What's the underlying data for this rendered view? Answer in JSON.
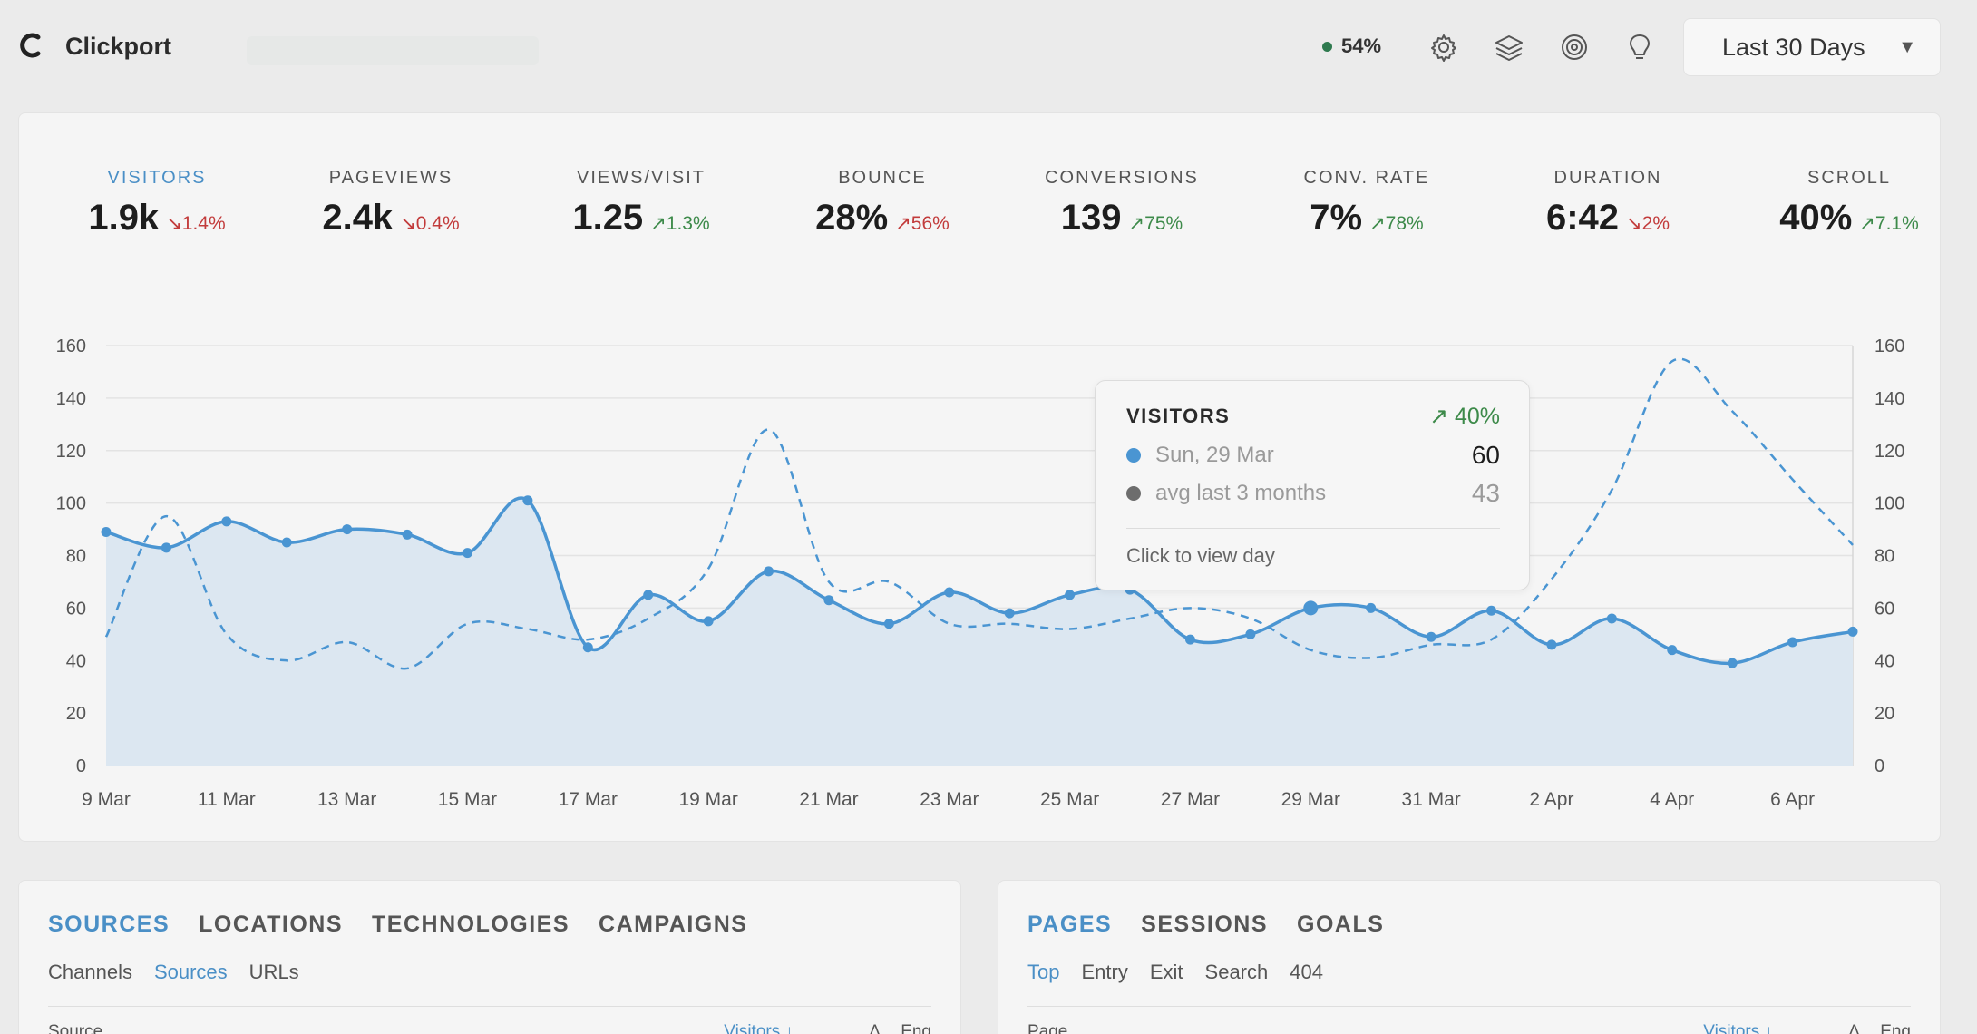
{
  "header": {
    "app_name": "Clickport",
    "live_percent": "54%",
    "icons": [
      "gear-icon",
      "layers-icon",
      "target-icon",
      "lightbulb-icon"
    ],
    "date_range": "Last 30 Days"
  },
  "kpis": [
    {
      "label": "VISITORS",
      "value": "1.9k",
      "change": "↘1.4%",
      "direction": "down",
      "active": true
    },
    {
      "label": "PAGEVIEWS",
      "value": "2.4k",
      "change": "↘0.4%",
      "direction": "down"
    },
    {
      "label": "VIEWS/VISIT",
      "value": "1.25",
      "change": "↗1.3%",
      "direction": "up"
    },
    {
      "label": "BOUNCE",
      "value": "28%",
      "change": "↗56%",
      "direction": "down"
    },
    {
      "label": "CONVERSIONS",
      "value": "139",
      "change": "↗75%",
      "direction": "up"
    },
    {
      "label": "CONV. RATE",
      "value": "7%",
      "change": "↗78%",
      "direction": "up"
    },
    {
      "label": "DURATION",
      "value": "6:42",
      "change": "↘2%",
      "direction": "down"
    },
    {
      "label": "SCROLL",
      "value": "40%",
      "change": "↗7.1%",
      "direction": "up"
    }
  ],
  "tooltip": {
    "title": "VISITORS",
    "change": "↗ 40%",
    "current_label": "Sun, 29 Mar",
    "current_value": "60",
    "previous_label": "avg last 3 months",
    "previous_value": "43",
    "link": "Click to view day"
  },
  "chart_data": {
    "type": "area",
    "x_tick_labels": [
      "9 Mar",
      "11 Mar",
      "13 Mar",
      "15 Mar",
      "17 Mar",
      "19 Mar",
      "21 Mar",
      "23 Mar",
      "25 Mar",
      "27 Mar",
      "29 Mar",
      "31 Mar",
      "2 Apr",
      "4 Apr",
      "6 Apr"
    ],
    "ylim": [
      0,
      160
    ],
    "y_ticks": [
      0,
      20,
      40,
      60,
      80,
      100,
      120,
      140,
      160
    ],
    "dual_axis": true,
    "grid": true,
    "series": [
      {
        "style": "solid-area",
        "color": "#4a95d2",
        "values": [
          89,
          83,
          93,
          85,
          90,
          88,
          81,
          101,
          45,
          65,
          55,
          74,
          63,
          54,
          66,
          58,
          65,
          67,
          48,
          50,
          60,
          60,
          49,
          59,
          46,
          56,
          44,
          39,
          47,
          51
        ]
      },
      {
        "style": "dashed",
        "color": "#4a95d2",
        "values": [
          49,
          95,
          50,
          40,
          47,
          37,
          54,
          52,
          48,
          56,
          75,
          128,
          70,
          70,
          54,
          54,
          52,
          56,
          60,
          56,
          44,
          41,
          46,
          48,
          71,
          105,
          154,
          135,
          109,
          84
        ]
      }
    ],
    "highlight_index": 20
  },
  "panels": {
    "left": {
      "tabs": [
        "SOURCES",
        "LOCATIONS",
        "TECHNOLOGIES",
        "CAMPAIGNS"
      ],
      "active_tab": 0,
      "subtabs": [
        "Channels",
        "Sources",
        "URLs"
      ],
      "active_subtab": 1,
      "columns": [
        "Source",
        "Visitors ↓",
        "Δ",
        "Eng"
      ]
    },
    "right": {
      "tabs": [
        "PAGES",
        "SESSIONS",
        "GOALS"
      ],
      "active_tab": 0,
      "subtabs": [
        "Top",
        "Entry",
        "Exit",
        "Search",
        "404"
      ],
      "active_subtab": 0,
      "columns": [
        "Page",
        "Visitors ↓",
        "Δ",
        "Eng"
      ]
    }
  }
}
